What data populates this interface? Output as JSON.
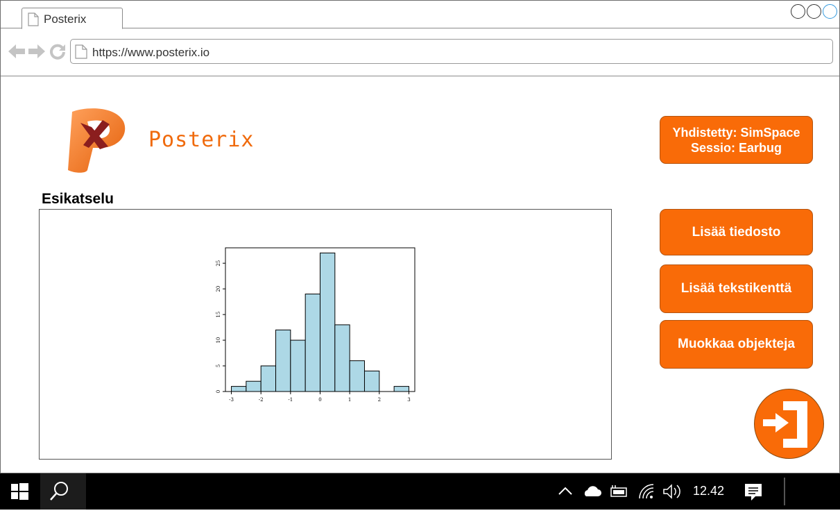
{
  "browser": {
    "tab_title": "Posterix",
    "url": "https://www.posterix.io"
  },
  "app": {
    "brand_name": "Posterix",
    "status_line1": "Yhdistetty: SimSpace",
    "status_line2": "Sessio: Earbug",
    "preview_title": "Esikatselu",
    "buttons": {
      "add_file": "Lisää tiedosto",
      "add_textfield": "Lisää tekstikenttä",
      "edit_objects": "Muokkaa objekteja"
    },
    "colors": {
      "accent": "#f96b08",
      "bar_fill": "#add8e6"
    }
  },
  "chart_data": {
    "type": "bar",
    "title": "",
    "xlabel": "",
    "ylabel": "",
    "bin_edges": [
      -3.0,
      -2.5,
      -2.0,
      -1.5,
      -1.0,
      -0.5,
      0.0,
      0.5,
      1.0,
      1.5,
      2.0,
      2.5,
      3.0
    ],
    "values": [
      1,
      2,
      5,
      12,
      10,
      19,
      27,
      13,
      6,
      4,
      0,
      1
    ],
    "xlim": [
      -3.2,
      3.2
    ],
    "ylim": [
      0,
      28
    ],
    "x_ticks": [
      "-3",
      "-2",
      "-1",
      "0",
      "1",
      "2",
      "3"
    ],
    "y_ticks": [
      "0",
      "5",
      "10",
      "15",
      "20",
      "25"
    ],
    "grid": false
  },
  "taskbar": {
    "clock": "12.42",
    "icons": [
      "windows-start-icon",
      "search-icon",
      "chevron-up-icon",
      "cloud-icon",
      "battery-icon",
      "wifi-icon",
      "volume-icon",
      "notification-icon"
    ]
  }
}
